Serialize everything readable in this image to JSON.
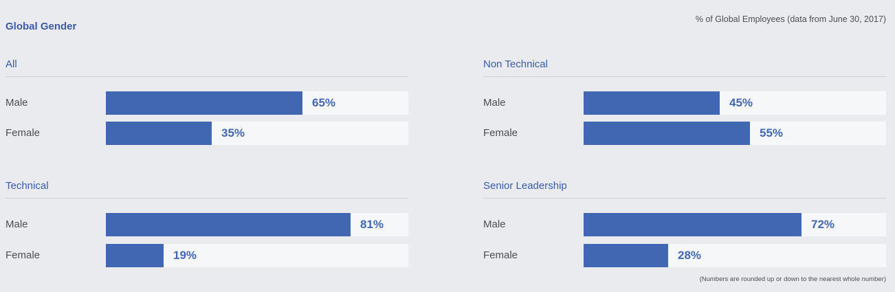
{
  "header": {
    "title": "Global Gender",
    "subtitle": "% of Global Employees (data from June 30, 2017)"
  },
  "footnote": "(Numbers are rounded up or down to the nearest whole number)",
  "colors": {
    "bar": "#4267b2",
    "track": "#f6f7f9",
    "background": "#e9ebee",
    "title": "#3b5aa8"
  },
  "chart_data": [
    {
      "type": "bar",
      "title": "All",
      "categories": [
        "Male",
        "Female"
      ],
      "values": [
        65,
        35
      ],
      "value_labels": [
        "65%",
        "35%"
      ],
      "xlim": [
        0,
        100
      ]
    },
    {
      "type": "bar",
      "title": "Non Technical",
      "categories": [
        "Male",
        "Female"
      ],
      "values": [
        45,
        55
      ],
      "value_labels": [
        "45%",
        "55%"
      ],
      "xlim": [
        0,
        100
      ]
    },
    {
      "type": "bar",
      "title": "Technical",
      "categories": [
        "Male",
        "Female"
      ],
      "values": [
        81,
        19
      ],
      "value_labels": [
        "81%",
        "19%"
      ],
      "xlim": [
        0,
        100
      ]
    },
    {
      "type": "bar",
      "title": "Senior Leadership",
      "categories": [
        "Male",
        "Female"
      ],
      "values": [
        72,
        28
      ],
      "value_labels": [
        "72%",
        "28%"
      ],
      "xlim": [
        0,
        100
      ]
    }
  ]
}
